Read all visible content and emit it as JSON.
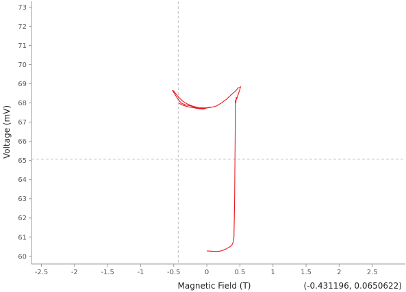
{
  "chart_data": {
    "type": "line",
    "title": "",
    "xlabel": "Magnetic Field (T)",
    "ylabel": "Voltage (mV)",
    "xlim": [
      -2.65,
      3.0
    ],
    "ylim": [
      59.6,
      73.3
    ],
    "xticks": [
      -2.5,
      -2,
      -1.5,
      -1,
      -0.5,
      0,
      0.5,
      1,
      1.5,
      2,
      2.5
    ],
    "xtick_labels": [
      "-2.5",
      "-2",
      "-1.5",
      "-1",
      "-0.5",
      "0",
      "0.5",
      "1",
      "1.5",
      "2",
      "2.5"
    ],
    "yticks": [
      60,
      61,
      62,
      63,
      64,
      65,
      66,
      67,
      68,
      69,
      70,
      71,
      72,
      73
    ],
    "ytick_labels": [
      "60",
      "61",
      "62",
      "63",
      "64",
      "65",
      "66",
      "67",
      "68",
      "69",
      "70",
      "71",
      "72",
      "73"
    ],
    "grid": false,
    "crosshair": {
      "x": -0.431196,
      "y": 65.0650622,
      "color": "#c8c8c8"
    },
    "readout": "(-0.431196, 0.0650622)",
    "series": [
      {
        "color": "#e8141c",
        "x": [
          0.0,
          0.05,
          0.1,
          0.15,
          0.2,
          0.25,
          0.3,
          0.35,
          0.38,
          0.4,
          0.41,
          0.42,
          0.425,
          0.43,
          0.43,
          0.435,
          0.44,
          0.445,
          0.45,
          0.46,
          0.48,
          0.5,
          0.51,
          0.5,
          0.47,
          0.45,
          0.41,
          0.36,
          0.3,
          0.22,
          0.15,
          0.08,
          0.02,
          -0.05,
          -0.12,
          -0.2,
          -0.28,
          -0.36,
          -0.42,
          -0.47,
          -0.5,
          -0.52,
          -0.5,
          -0.46,
          -0.42,
          -0.38,
          -0.32,
          -0.25,
          -0.18,
          -0.1,
          -0.03,
          0.02,
          0.05,
          0.0,
          -0.05,
          -0.12,
          -0.2,
          -0.28,
          -0.36,
          -0.42
        ],
        "y": [
          60.28,
          60.27,
          60.26,
          60.25,
          60.27,
          60.32,
          60.4,
          60.5,
          60.6,
          60.75,
          61.0,
          63.0,
          65.0,
          67.0,
          68.05,
          68.15,
          68.02,
          68.3,
          68.2,
          68.3,
          68.5,
          68.72,
          68.85,
          68.8,
          68.78,
          68.68,
          68.55,
          68.4,
          68.2,
          68.0,
          67.85,
          67.78,
          67.75,
          67.74,
          67.75,
          67.82,
          67.92,
          68.08,
          68.28,
          68.48,
          68.62,
          68.65,
          68.55,
          68.32,
          68.12,
          67.98,
          67.9,
          67.85,
          67.78,
          67.72,
          67.72,
          67.75,
          67.78,
          67.74,
          67.68,
          67.7,
          67.75,
          67.8,
          67.88,
          67.98
        ]
      }
    ]
  }
}
